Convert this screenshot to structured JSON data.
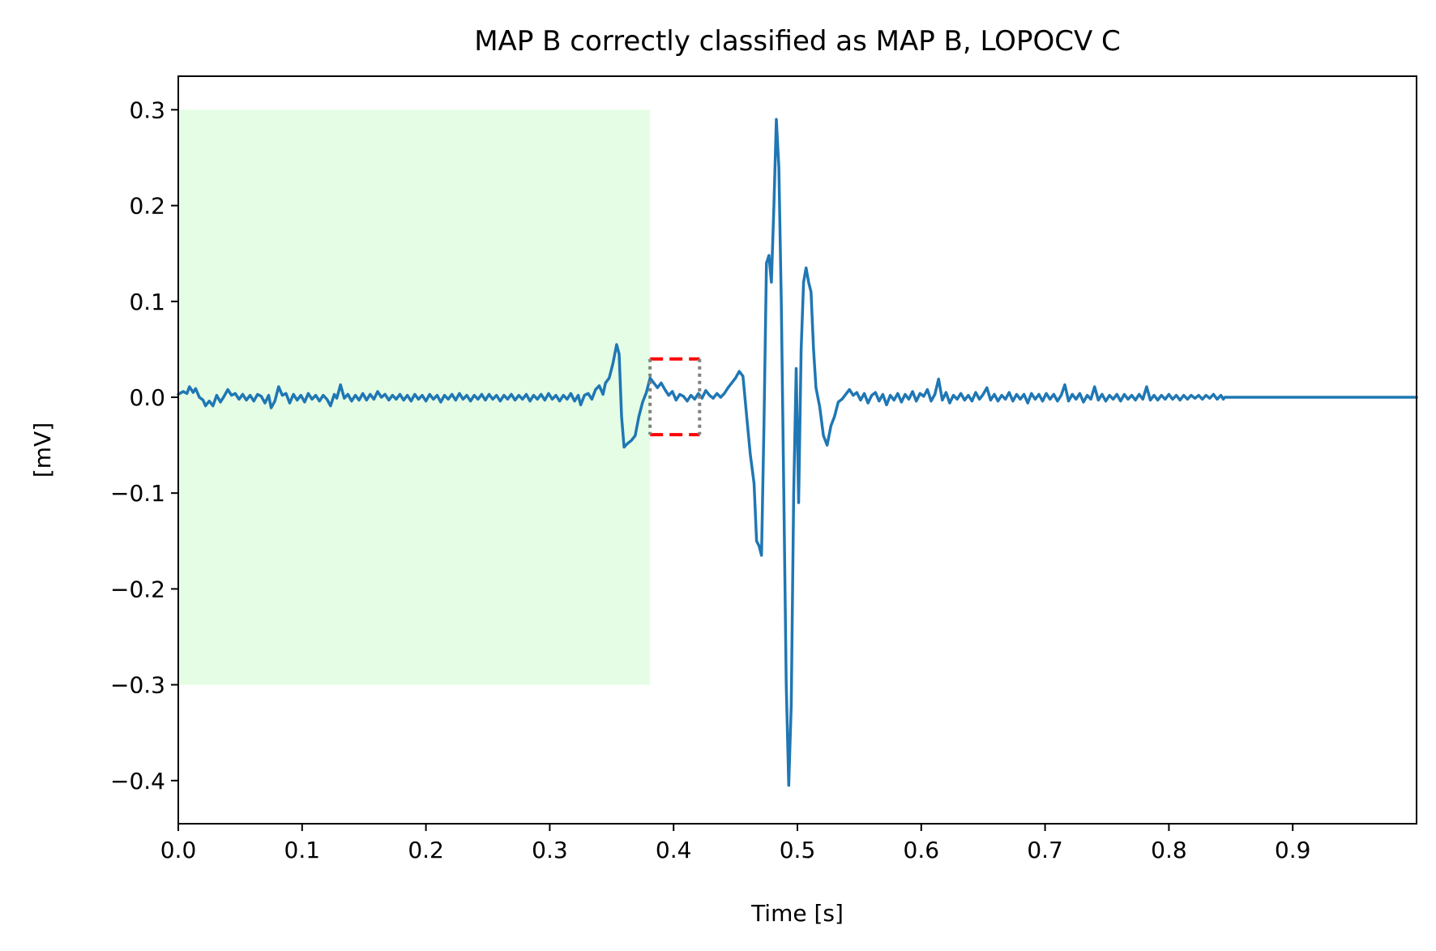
{
  "chart_data": {
    "type": "line",
    "title": "MAP B correctly classified as MAP B, LOPOCV C",
    "xlabel": "Time [s]",
    "ylabel": "[mV]",
    "xlim": [
      0,
      1.0
    ],
    "ylim": [
      -0.445,
      0.335
    ],
    "x_ticks": [
      0.0,
      0.1,
      0.2,
      0.3,
      0.4,
      0.5,
      0.6,
      0.7,
      0.8,
      0.9
    ],
    "x_tick_labels": [
      "0.0",
      "0.1",
      "0.2",
      "0.3",
      "0.4",
      "0.5",
      "0.6",
      "0.7",
      "0.8",
      "0.9"
    ],
    "y_ticks": [
      0.3,
      0.2,
      0.1,
      0.0,
      -0.1,
      -0.2,
      -0.3,
      -0.4
    ],
    "y_tick_labels": [
      "0.3",
      "0.2",
      "0.1",
      "0.0",
      "−0.1",
      "−0.2",
      "−0.3",
      "−0.4"
    ],
    "grid": false,
    "shaded_region": {
      "x": [
        0.0,
        0.381
      ],
      "y": [
        -0.3,
        0.3
      ],
      "color": "#e5fde5"
    },
    "window_box": {
      "x": [
        0.381,
        0.421
      ],
      "y": [
        -0.039,
        0.04
      ],
      "horizontal_color": "#ff0000",
      "vertical_color": "#808080"
    },
    "series": [
      {
        "color": "#1f77b4",
        "points": [
          [
            0.0,
            0.003
          ],
          [
            0.004,
            0.006
          ],
          [
            0.007,
            0.004
          ],
          [
            0.009,
            0.011
          ],
          [
            0.012,
            0.005
          ],
          [
            0.014,
            0.009
          ],
          [
            0.017,
            0.0
          ],
          [
            0.02,
            -0.003
          ],
          [
            0.022,
            -0.009
          ],
          [
            0.025,
            -0.004
          ],
          [
            0.028,
            -0.009
          ],
          [
            0.031,
            0.002
          ],
          [
            0.034,
            -0.005
          ],
          [
            0.037,
            0.001
          ],
          [
            0.04,
            0.008
          ],
          [
            0.043,
            0.002
          ],
          [
            0.046,
            0.004
          ],
          [
            0.049,
            -0.002
          ],
          [
            0.052,
            0.003
          ],
          [
            0.055,
            -0.003
          ],
          [
            0.058,
            0.002
          ],
          [
            0.061,
            -0.004
          ],
          [
            0.064,
            0.003
          ],
          [
            0.067,
            0.001
          ],
          [
            0.07,
            -0.006
          ],
          [
            0.073,
            0.002
          ],
          [
            0.075,
            -0.011
          ],
          [
            0.078,
            -0.004
          ],
          [
            0.081,
            0.011
          ],
          [
            0.084,
            0.002
          ],
          [
            0.087,
            0.004
          ],
          [
            0.09,
            -0.006
          ],
          [
            0.093,
            0.003
          ],
          [
            0.096,
            -0.003
          ],
          [
            0.099,
            0.002
          ],
          [
            0.102,
            -0.005
          ],
          [
            0.105,
            0.004
          ],
          [
            0.108,
            -0.002
          ],
          [
            0.111,
            0.002
          ],
          [
            0.114,
            -0.004
          ],
          [
            0.117,
            0.002
          ],
          [
            0.12,
            -0.002
          ],
          [
            0.123,
            -0.009
          ],
          [
            0.126,
            0.003
          ],
          [
            0.128,
            -0.001
          ],
          [
            0.131,
            0.013
          ],
          [
            0.134,
            -0.001
          ],
          [
            0.137,
            0.003
          ],
          [
            0.14,
            -0.004
          ],
          [
            0.143,
            0.002
          ],
          [
            0.146,
            -0.003
          ],
          [
            0.149,
            0.004
          ],
          [
            0.152,
            -0.003
          ],
          [
            0.155,
            0.003
          ],
          [
            0.158,
            -0.002
          ],
          [
            0.161,
            0.006
          ],
          [
            0.164,
            0.0
          ],
          [
            0.167,
            0.003
          ],
          [
            0.17,
            -0.003
          ],
          [
            0.173,
            0.002
          ],
          [
            0.176,
            -0.002
          ],
          [
            0.179,
            0.003
          ],
          [
            0.182,
            -0.003
          ],
          [
            0.185,
            0.002
          ],
          [
            0.188,
            -0.004
          ],
          [
            0.191,
            0.003
          ],
          [
            0.194,
            -0.002
          ],
          [
            0.197,
            0.002
          ],
          [
            0.2,
            -0.004
          ],
          [
            0.203,
            0.003
          ],
          [
            0.206,
            -0.002
          ],
          [
            0.209,
            0.002
          ],
          [
            0.212,
            -0.005
          ],
          [
            0.215,
            0.002
          ],
          [
            0.218,
            -0.002
          ],
          [
            0.221,
            0.003
          ],
          [
            0.224,
            -0.003
          ],
          [
            0.227,
            0.004
          ],
          [
            0.23,
            -0.002
          ],
          [
            0.233,
            0.002
          ],
          [
            0.236,
            -0.004
          ],
          [
            0.239,
            0.002
          ],
          [
            0.242,
            -0.002
          ],
          [
            0.245,
            0.003
          ],
          [
            0.248,
            -0.003
          ],
          [
            0.251,
            0.003
          ],
          [
            0.254,
            -0.002
          ],
          [
            0.257,
            0.002
          ],
          [
            0.26,
            -0.004
          ],
          [
            0.263,
            0.002
          ],
          [
            0.266,
            -0.002
          ],
          [
            0.269,
            0.003
          ],
          [
            0.272,
            -0.003
          ],
          [
            0.275,
            0.002
          ],
          [
            0.278,
            -0.002
          ],
          [
            0.281,
            0.003
          ],
          [
            0.284,
            -0.004
          ],
          [
            0.287,
            0.002
          ],
          [
            0.29,
            -0.002
          ],
          [
            0.293,
            0.003
          ],
          [
            0.296,
            -0.003
          ],
          [
            0.299,
            0.004
          ],
          [
            0.302,
            -0.002
          ],
          [
            0.305,
            0.002
          ],
          [
            0.308,
            -0.004
          ],
          [
            0.311,
            0.002
          ],
          [
            0.314,
            -0.002
          ],
          [
            0.317,
            0.004
          ],
          [
            0.32,
            -0.004
          ],
          [
            0.323,
            0.002
          ],
          [
            0.325,
            -0.008
          ],
          [
            0.328,
            0.002
          ],
          [
            0.331,
            0.004
          ],
          [
            0.334,
            -0.002
          ],
          [
            0.337,
            0.008
          ],
          [
            0.34,
            0.012
          ],
          [
            0.343,
            0.003
          ],
          [
            0.345,
            0.015
          ],
          [
            0.348,
            0.02
          ],
          [
            0.351,
            0.035
          ],
          [
            0.354,
            0.055
          ],
          [
            0.356,
            0.045
          ],
          [
            0.358,
            -0.02
          ],
          [
            0.36,
            -0.052
          ],
          [
            0.363,
            -0.048
          ],
          [
            0.366,
            -0.045
          ],
          [
            0.369,
            -0.04
          ],
          [
            0.372,
            -0.02
          ],
          [
            0.375,
            -0.005
          ],
          [
            0.378,
            0.005
          ],
          [
            0.381,
            0.02
          ],
          [
            0.384,
            0.015
          ],
          [
            0.387,
            0.01
          ],
          [
            0.39,
            0.015
          ],
          [
            0.393,
            0.008
          ],
          [
            0.396,
            0.002
          ],
          [
            0.399,
            0.006
          ],
          [
            0.402,
            -0.003
          ],
          [
            0.405,
            0.003
          ],
          [
            0.408,
            0.001
          ],
          [
            0.411,
            -0.004
          ],
          [
            0.414,
            0.002
          ],
          [
            0.417,
            -0.002
          ],
          [
            0.42,
            0.004
          ],
          [
            0.423,
            -0.001
          ],
          [
            0.426,
            0.007
          ],
          [
            0.429,
            0.002
          ],
          [
            0.432,
            -0.001
          ],
          [
            0.435,
            0.004
          ],
          [
            0.438,
            0.0
          ],
          [
            0.441,
            0.004
          ],
          [
            0.444,
            0.01
          ],
          [
            0.447,
            0.015
          ],
          [
            0.45,
            0.02
          ],
          [
            0.453,
            0.027
          ],
          [
            0.456,
            0.022
          ],
          [
            0.459,
            -0.02
          ],
          [
            0.462,
            -0.06
          ],
          [
            0.465,
            -0.09
          ],
          [
            0.467,
            -0.15
          ],
          [
            0.469,
            -0.155
          ],
          [
            0.471,
            -0.165
          ],
          [
            0.473,
            -0.03
          ],
          [
            0.475,
            0.14
          ],
          [
            0.477,
            0.148
          ],
          [
            0.479,
            0.12
          ],
          [
            0.481,
            0.2
          ],
          [
            0.483,
            0.29
          ],
          [
            0.485,
            0.24
          ],
          [
            0.487,
            0.1
          ],
          [
            0.489,
            -0.1
          ],
          [
            0.491,
            -0.3
          ],
          [
            0.493,
            -0.405
          ],
          [
            0.495,
            -0.32
          ],
          [
            0.497,
            -0.1
          ],
          [
            0.499,
            0.03
          ],
          [
            0.501,
            -0.11
          ],
          [
            0.503,
            0.05
          ],
          [
            0.505,
            0.12
          ],
          [
            0.507,
            0.135
          ],
          [
            0.509,
            0.12
          ],
          [
            0.511,
            0.11
          ],
          [
            0.513,
            0.05
          ],
          [
            0.515,
            0.01
          ],
          [
            0.518,
            -0.01
          ],
          [
            0.521,
            -0.04
          ],
          [
            0.524,
            -0.05
          ],
          [
            0.527,
            -0.03
          ],
          [
            0.53,
            -0.02
          ],
          [
            0.533,
            -0.005
          ],
          [
            0.536,
            -0.002
          ],
          [
            0.539,
            0.003
          ],
          [
            0.542,
            0.008
          ],
          [
            0.545,
            0.002
          ],
          [
            0.548,
            0.005
          ],
          [
            0.551,
            -0.003
          ],
          [
            0.554,
            0.004
          ],
          [
            0.557,
            -0.006
          ],
          [
            0.56,
            0.002
          ],
          [
            0.563,
            0.005
          ],
          [
            0.566,
            -0.004
          ],
          [
            0.569,
            0.003
          ],
          [
            0.572,
            -0.008
          ],
          [
            0.575,
            0.002
          ],
          [
            0.578,
            -0.003
          ],
          [
            0.581,
            0.004
          ],
          [
            0.584,
            -0.005
          ],
          [
            0.587,
            0.003
          ],
          [
            0.59,
            -0.002
          ],
          [
            0.593,
            0.006
          ],
          [
            0.596,
            -0.004
          ],
          [
            0.599,
            0.004
          ],
          [
            0.602,
            0.001
          ],
          [
            0.605,
            0.008
          ],
          [
            0.608,
            -0.004
          ],
          [
            0.611,
            0.003
          ],
          [
            0.614,
            0.019
          ],
          [
            0.617,
            -0.003
          ],
          [
            0.62,
            0.005
          ],
          [
            0.623,
            -0.006
          ],
          [
            0.626,
            0.002
          ],
          [
            0.629,
            -0.002
          ],
          [
            0.632,
            0.004
          ],
          [
            0.635,
            -0.003
          ],
          [
            0.638,
            0.002
          ],
          [
            0.641,
            -0.004
          ],
          [
            0.644,
            0.005
          ],
          [
            0.647,
            -0.002
          ],
          [
            0.65,
            0.003
          ],
          [
            0.653,
            0.01
          ],
          [
            0.656,
            -0.003
          ],
          [
            0.659,
            0.003
          ],
          [
            0.662,
            -0.004
          ],
          [
            0.665,
            0.002
          ],
          [
            0.668,
            -0.002
          ],
          [
            0.671,
            0.005
          ],
          [
            0.674,
            -0.004
          ],
          [
            0.677,
            0.003
          ],
          [
            0.68,
            -0.002
          ],
          [
            0.683,
            0.003
          ],
          [
            0.686,
            -0.006
          ],
          [
            0.689,
            0.004
          ],
          [
            0.692,
            -0.002
          ],
          [
            0.695,
            0.003
          ],
          [
            0.698,
            -0.004
          ],
          [
            0.701,
            0.004
          ],
          [
            0.704,
            -0.002
          ],
          [
            0.707,
            0.003
          ],
          [
            0.71,
            -0.004
          ],
          [
            0.713,
            0.002
          ],
          [
            0.716,
            0.013
          ],
          [
            0.719,
            -0.004
          ],
          [
            0.722,
            0.003
          ],
          [
            0.725,
            -0.002
          ],
          [
            0.728,
            0.004
          ],
          [
            0.731,
            -0.005
          ],
          [
            0.734,
            0.002
          ],
          [
            0.737,
            -0.002
          ],
          [
            0.74,
            0.011
          ],
          [
            0.743,
            -0.003
          ],
          [
            0.746,
            0.003
          ],
          [
            0.749,
            -0.004
          ],
          [
            0.752,
            0.002
          ],
          [
            0.755,
            -0.002
          ],
          [
            0.758,
            0.003
          ],
          [
            0.761,
            -0.004
          ],
          [
            0.764,
            0.003
          ],
          [
            0.767,
            -0.002
          ],
          [
            0.77,
            0.002
          ],
          [
            0.773,
            -0.003
          ],
          [
            0.776,
            0.003
          ],
          [
            0.779,
            -0.002
          ],
          [
            0.782,
            0.011
          ],
          [
            0.785,
            -0.003
          ],
          [
            0.788,
            0.002
          ],
          [
            0.791,
            -0.003
          ],
          [
            0.794,
            0.002
          ],
          [
            0.797,
            -0.002
          ],
          [
            0.8,
            0.003
          ],
          [
            0.803,
            -0.002
          ],
          [
            0.806,
            0.002
          ],
          [
            0.809,
            -0.003
          ],
          [
            0.812,
            0.002
          ],
          [
            0.815,
            -0.002
          ],
          [
            0.818,
            0.002
          ],
          [
            0.821,
            -0.001
          ],
          [
            0.824,
            0.002
          ],
          [
            0.827,
            -0.002
          ],
          [
            0.83,
            0.002
          ],
          [
            0.833,
            -0.001
          ],
          [
            0.836,
            0.003
          ],
          [
            0.839,
            -0.002
          ],
          [
            0.842,
            0.002
          ],
          [
            0.844,
            -0.002
          ],
          [
            0.845,
            0.0
          ],
          [
            1.0,
            0.0
          ]
        ]
      }
    ]
  }
}
